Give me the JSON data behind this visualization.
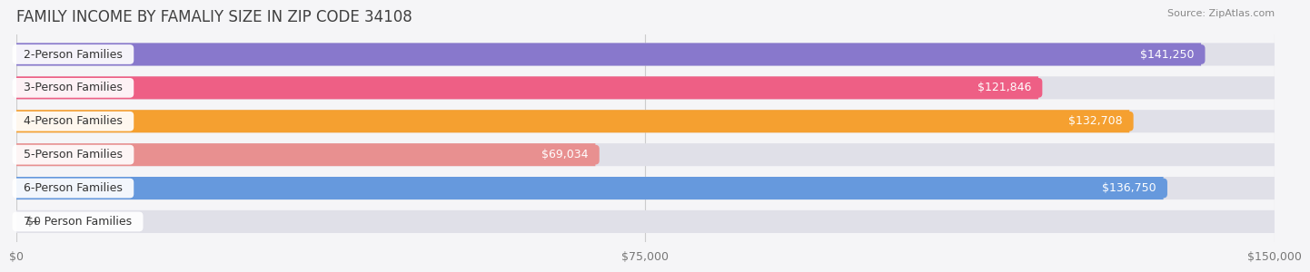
{
  "title": "FAMILY INCOME BY FAMALIY SIZE IN ZIP CODE 34108",
  "source": "Source: ZipAtlas.com",
  "categories": [
    "2-Person Families",
    "3-Person Families",
    "4-Person Families",
    "5-Person Families",
    "6-Person Families",
    "7+ Person Families"
  ],
  "values": [
    141250,
    121846,
    132708,
    69034,
    136750,
    0
  ],
  "bar_colors": [
    "#8878cc",
    "#ee5f85",
    "#f5a030",
    "#e89090",
    "#6699dd",
    "#c4b8d8"
  ],
  "bar_bg_color": "#e0e0e8",
  "label_bg_colors": [
    "#8878cc",
    "#ee5f85",
    "#f5a030",
    "#e89090",
    "#6699dd",
    "#c4b8d8"
  ],
  "label_colors": [
    "white",
    "white",
    "white",
    "white",
    "white",
    "#666666"
  ],
  "xlim": [
    0,
    150000
  ],
  "xticks": [
    0,
    75000,
    150000
  ],
  "xtick_labels": [
    "$0",
    "$75,000",
    "$150,000"
  ],
  "background_color": "#f5f5f7",
  "title_fontsize": 12,
  "source_fontsize": 8,
  "bar_label_fontsize": 9,
  "category_fontsize": 9,
  "value_labels": [
    "$141,250",
    "$121,846",
    "$132,708",
    "$69,034",
    "$136,750",
    "$0"
  ],
  "max_value": 150000,
  "small_dot_colors": [
    "#8878cc",
    "#ee5f85",
    "#f5a030",
    "#e89090",
    "#6699dd",
    "#c4b8d8"
  ]
}
